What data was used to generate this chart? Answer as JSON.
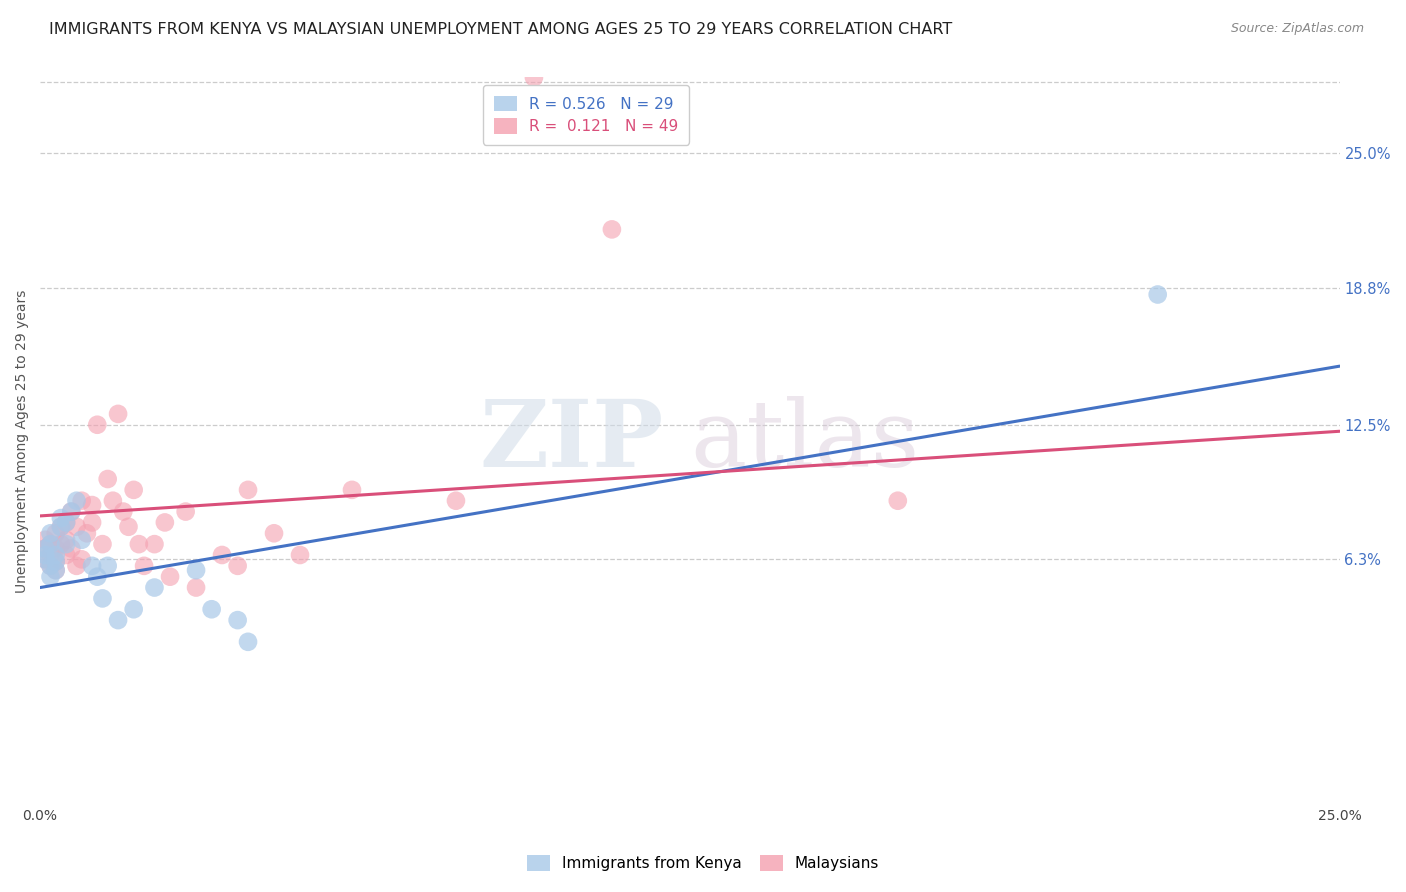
{
  "title": "IMMIGRANTS FROM KENYA VS MALAYSIAN UNEMPLOYMENT AMONG AGES 25 TO 29 YEARS CORRELATION CHART",
  "source": "Source: ZipAtlas.com",
  "ylabel": "Unemployment Among Ages 25 to 29 years",
  "xlim": [
    0.0,
    0.25
  ],
  "ylim": [
    -0.05,
    0.285
  ],
  "x_tick_positions": [
    0.0,
    0.05,
    0.1,
    0.15,
    0.2,
    0.25
  ],
  "x_tick_labels": [
    "0.0%",
    "",
    "",
    "",
    "",
    "25.0%"
  ],
  "y_tick_labels_right": [
    "6.3%",
    "12.5%",
    "18.8%",
    "25.0%"
  ],
  "y_tick_vals_right": [
    0.063,
    0.125,
    0.188,
    0.25
  ],
  "watermark_zip": "ZIP",
  "watermark_atlas": "atlas",
  "blue_scatter_x": [
    0.001,
    0.001,
    0.001,
    0.002,
    0.002,
    0.002,
    0.002,
    0.003,
    0.003,
    0.003,
    0.004,
    0.004,
    0.005,
    0.005,
    0.006,
    0.007,
    0.008,
    0.01,
    0.011,
    0.012,
    0.013,
    0.015,
    0.018,
    0.022,
    0.03,
    0.033,
    0.038,
    0.04,
    0.215
  ],
  "blue_scatter_y": [
    0.063,
    0.065,
    0.068,
    0.055,
    0.06,
    0.07,
    0.075,
    0.058,
    0.062,
    0.065,
    0.078,
    0.082,
    0.07,
    0.08,
    0.085,
    0.09,
    0.072,
    0.06,
    0.055,
    0.045,
    0.06,
    0.035,
    0.04,
    0.05,
    0.058,
    0.04,
    0.035,
    0.025,
    0.185
  ],
  "pink_scatter_x": [
    0.001,
    0.001,
    0.001,
    0.002,
    0.002,
    0.002,
    0.003,
    0.003,
    0.003,
    0.003,
    0.004,
    0.004,
    0.005,
    0.005,
    0.005,
    0.006,
    0.006,
    0.007,
    0.007,
    0.008,
    0.008,
    0.009,
    0.01,
    0.01,
    0.011,
    0.012,
    0.013,
    0.014,
    0.015,
    0.016,
    0.017,
    0.018,
    0.019,
    0.02,
    0.022,
    0.024,
    0.025,
    0.028,
    0.03,
    0.035,
    0.038,
    0.04,
    0.045,
    0.05,
    0.06,
    0.08,
    0.095,
    0.11,
    0.165
  ],
  "pink_scatter_y": [
    0.063,
    0.068,
    0.072,
    0.06,
    0.065,
    0.07,
    0.058,
    0.062,
    0.068,
    0.075,
    0.07,
    0.078,
    0.065,
    0.072,
    0.08,
    0.068,
    0.085,
    0.06,
    0.078,
    0.063,
    0.09,
    0.075,
    0.08,
    0.088,
    0.125,
    0.07,
    0.1,
    0.09,
    0.13,
    0.085,
    0.078,
    0.095,
    0.07,
    0.06,
    0.07,
    0.08,
    0.055,
    0.085,
    0.05,
    0.065,
    0.06,
    0.095,
    0.075,
    0.065,
    0.095,
    0.09,
    0.285,
    0.215,
    0.09
  ],
  "blue_scatter_size": 180,
  "pink_scatter_size": 180,
  "blue_line_x": [
    0.0,
    0.25
  ],
  "blue_line_y": [
    0.05,
    0.152
  ],
  "pink_line_x": [
    0.0,
    0.25
  ],
  "pink_line_y": [
    0.083,
    0.122
  ],
  "blue_color": "#a8c8e8",
  "pink_color": "#f4a0b0",
  "blue_line_color": "#4472c4",
  "pink_line_color": "#d94f7a",
  "background_color": "#ffffff",
  "grid_color": "#cccccc",
  "title_fontsize": 11.5,
  "axis_label_fontsize": 10,
  "source_text": "Source: ZipAtlas.com"
}
